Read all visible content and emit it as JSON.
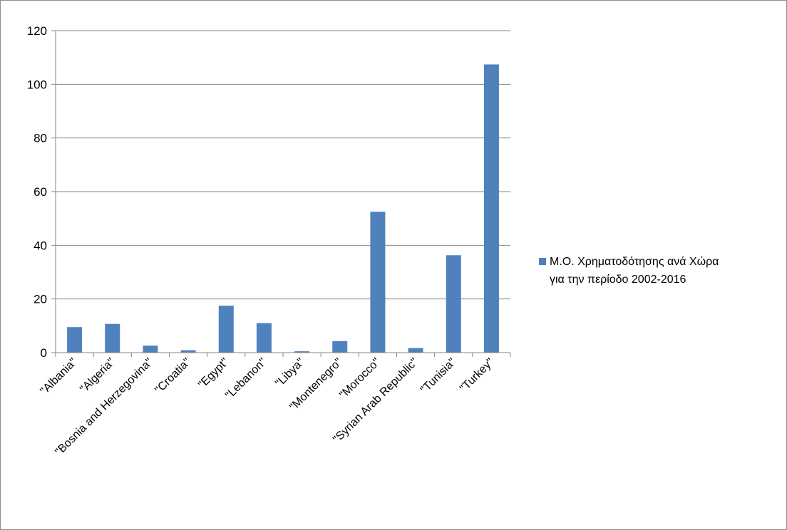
{
  "chart_data": {
    "type": "bar",
    "categories": [
      "\"Albania\"",
      "\"Algeria\"",
      "\"Bosnia and Herzegovina\"",
      "\"Croatia\"",
      "\"Egypt\"",
      "\"Lebanon\"",
      "\"Libya\"",
      "\"Montenegro\"",
      "\"Morocco\"",
      "\"Syrian Arab Republic\"",
      "\"Tunisia\"",
      "\"Turkey\""
    ],
    "series": [
      {
        "name": "Μ.Ο. Χρηματοδότησης ανά Χώρα για την περίοδο 2002-2016",
        "values": [
          9.5,
          10.7,
          2.6,
          0.9,
          17.5,
          11.0,
          0.5,
          4.3,
          52.5,
          1.7,
          36.3,
          107.4
        ]
      }
    ],
    "ylim": [
      0,
      120
    ],
    "yticks": [
      "0",
      "20",
      "40",
      "60",
      "80",
      "100",
      "120"
    ],
    "grid": true,
    "legend_position": "right",
    "legend_lines": [
      "Μ.Ο. Χρηματοδότησης ανά Χώρα",
      "για την περίοδο 2002-2016"
    ],
    "bar_color": "#4f81bd"
  }
}
